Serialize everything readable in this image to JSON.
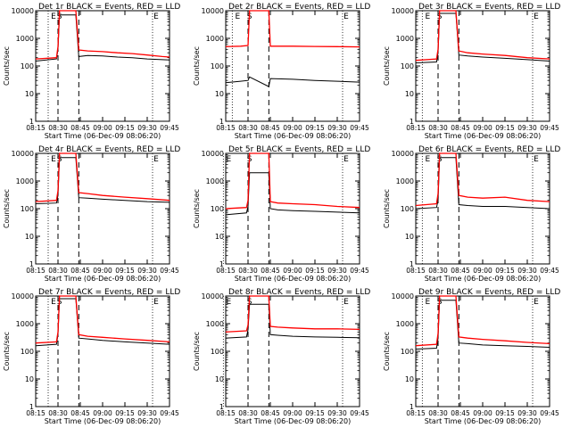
{
  "figure": {
    "xticks": [
      "08:15",
      "08:30",
      "08:45",
      "09:00",
      "09:15",
      "09:30",
      "09:45"
    ],
    "yticks": [
      "1",
      "10",
      "100",
      "1000",
      "10000"
    ],
    "ylabel": "Counts/sec",
    "markers": [
      "E",
      "S",
      "E"
    ],
    "xlabel_2r": "Start Time (06-Dec-09 08:06:20)",
    "xlabel_3r": "Start Time (06-Dec-09 08:06:20)",
    "xlabel_5r": "Start Time (06-Dec-09 08:06:20)",
    "xlabel_6r": "Start Time (06-Dec-09 08:06:20)",
    "xlabel_8r": "Start Time (06-Dec-09 08:06:20)",
    "xlabel_9r": "Start Time (06-Dec-09 08:06:20)",
    "xlabel_1r": "Start Time (06-Dec-09 08:06:20)",
    "xlabel_4r": "Start Time (06-Dec-09 08:06:20)",
    "xlabel_7r": "Start Time (06-Dec-09 08:06:20)",
    "colors": {
      "events": "#000000",
      "lld": "#ff0000"
    }
  },
  "chart_data": [
    {
      "type": "line",
      "title": "Det 1r BLACK = Events, RED = LLD",
      "xlabel": "Start Time (06-Dec-09 08:06:20)",
      "ylabel": "Counts/sec",
      "yscale": "log",
      "ylim": [
        1,
        10000
      ],
      "xlim": [
        "08:15",
        "09:45"
      ],
      "markers": [
        [
          "E",
          "08:27"
        ],
        [
          "S",
          "08:31"
        ],
        [
          "E",
          "09:36"
        ]
      ],
      "series": [
        {
          "name": "BLACK = Events",
          "x": [
            "08:15",
            "08:29",
            "08:30",
            "08:31",
            "08:42",
            "08:44",
            "08:50",
            "09:00",
            "09:10",
            "09:20",
            "09:30",
            "09:40",
            "09:45"
          ],
          "y": [
            150,
            180,
            400,
            7000,
            7000,
            220,
            240,
            230,
            210,
            200,
            180,
            170,
            165
          ]
        },
        {
          "name": "RED = LLD",
          "x": [
            "08:15",
            "08:29",
            "08:30",
            "08:31",
            "08:42",
            "08:44",
            "08:50",
            "09:00",
            "09:10",
            "09:20",
            "09:30",
            "09:40",
            "09:45"
          ],
          "y": [
            180,
            200,
            500,
            10000,
            10000,
            380,
            350,
            330,
            300,
            280,
            250,
            220,
            210
          ]
        }
      ]
    },
    {
      "type": "line",
      "title": "Det 2r BLACK = Events, RED = LLD",
      "xlabel": "Start Time (06-Dec-09 08:06:20)",
      "ylabel": "Counts/sec",
      "yscale": "log",
      "ylim": [
        1,
        10000
      ],
      "xlim": [
        "08:15",
        "09:45"
      ],
      "markers": [
        [
          "E",
          "08:23"
        ],
        [
          "S",
          "08:31"
        ],
        [
          "E",
          "09:36"
        ]
      ],
      "series": [
        {
          "name": "BLACK = Events",
          "x": [
            "08:15",
            "08:25",
            "08:30",
            "08:31",
            "08:44",
            "08:45",
            "09:00",
            "09:15",
            "09:30",
            "09:45"
          ],
          "y": [
            25,
            28,
            30,
            40,
            18,
            35,
            33,
            30,
            28,
            26
          ]
        },
        {
          "name": "RED = LLD",
          "x": [
            "08:15",
            "08:25",
            "08:30",
            "08:31",
            "08:44",
            "08:45",
            "09:00",
            "09:15",
            "09:30",
            "09:45"
          ],
          "y": [
            500,
            520,
            550,
            10000,
            10000,
            520,
            520,
            510,
            500,
            490
          ]
        }
      ]
    },
    {
      "type": "line",
      "title": "Det 3r BLACK = Events, RED = LLD",
      "xlabel": "Start Time (06-Dec-09 08:06:20)",
      "ylabel": "Counts/sec",
      "yscale": "log",
      "ylim": [
        1,
        10000
      ],
      "xlim": [
        "08:15",
        "09:45"
      ],
      "markers": [
        [
          "E",
          "08:23"
        ],
        [
          "S",
          "08:31"
        ],
        [
          "E",
          "09:36"
        ]
      ],
      "series": [
        {
          "name": "BLACK = Events",
          "x": [
            "08:15",
            "08:29",
            "08:30",
            "08:31",
            "08:42",
            "08:44",
            "08:50",
            "09:00",
            "09:15",
            "09:30",
            "09:45"
          ],
          "y": [
            130,
            140,
            300,
            8000,
            8000,
            250,
            230,
            210,
            190,
            170,
            150
          ]
        },
        {
          "name": "RED = LLD",
          "x": [
            "08:15",
            "08:29",
            "08:30",
            "08:31",
            "08:42",
            "08:44",
            "08:50",
            "09:00",
            "09:15",
            "09:30",
            "09:45"
          ],
          "y": [
            160,
            180,
            400,
            10000,
            10000,
            350,
            300,
            270,
            240,
            200,
            180
          ]
        }
      ]
    },
    {
      "type": "line",
      "title": "Det 4r BLACK = Events, RED = LLD",
      "xlabel": "Start Time (06-Dec-09 08:06:20)",
      "ylabel": "Counts/sec",
      "yscale": "log",
      "ylim": [
        1,
        10000
      ],
      "xlim": [
        "08:15",
        "09:45"
      ],
      "markers": [
        [
          "E",
          "08:27"
        ],
        [
          "S",
          "08:31"
        ],
        [
          "E",
          "09:36"
        ]
      ],
      "series": [
        {
          "name": "BLACK = Events",
          "x": [
            "08:15",
            "08:29",
            "08:30",
            "08:31",
            "08:42",
            "08:44",
            "08:50",
            "09:00",
            "09:15",
            "09:30",
            "09:45"
          ],
          "y": [
            150,
            160,
            300,
            7000,
            7000,
            250,
            240,
            220,
            200,
            180,
            170
          ]
        },
        {
          "name": "RED = LLD",
          "x": [
            "08:15",
            "08:29",
            "08:30",
            "08:31",
            "08:42",
            "08:44",
            "08:50",
            "09:00",
            "09:15",
            "09:30",
            "09:45"
          ],
          "y": [
            180,
            200,
            450,
            10000,
            10000,
            380,
            350,
            300,
            260,
            230,
            200
          ]
        }
      ]
    },
    {
      "type": "line",
      "title": "Det 5r BLACK = Events, RED = LLD",
      "xlabel": "Start Time (06-Dec-09 08:06:20)",
      "ylabel": "Counts/sec",
      "yscale": "log",
      "ylim": [
        1,
        10000
      ],
      "xlim": [
        "08:15",
        "09:45"
      ],
      "markers": [
        [
          "E",
          "08:17"
        ],
        [
          "S",
          "08:31"
        ],
        [
          "E",
          "09:36"
        ]
      ],
      "series": [
        {
          "name": "BLACK = Events",
          "x": [
            "08:15",
            "08:29",
            "08:30",
            "08:31",
            "08:44",
            "08:45",
            "08:50",
            "09:00",
            "09:15",
            "09:30",
            "09:45"
          ],
          "y": [
            60,
            70,
            120,
            2000,
            2000,
            100,
            90,
            85,
            80,
            75,
            70
          ]
        },
        {
          "name": "RED = LLD",
          "x": [
            "08:15",
            "08:29",
            "08:30",
            "08:31",
            "08:44",
            "08:45",
            "08:50",
            "09:00",
            "09:15",
            "09:30",
            "09:45"
          ],
          "y": [
            100,
            110,
            200,
            10000,
            10000,
            180,
            160,
            150,
            140,
            120,
            110
          ]
        }
      ]
    },
    {
      "type": "line",
      "title": "Det 6r BLACK = Events, RED = LLD",
      "xlabel": "Start Time (06-Dec-09 08:06:20)",
      "ylabel": "Counts/sec",
      "yscale": "log",
      "ylim": [
        1,
        10000
      ],
      "xlim": [
        "08:15",
        "09:45"
      ],
      "markers": [
        [
          "E",
          "08:23"
        ],
        [
          "S",
          "08:31"
        ],
        [
          "E",
          "09:36"
        ]
      ],
      "series": [
        {
          "name": "BLACK = Events",
          "x": [
            "08:15",
            "08:29",
            "08:30",
            "08:31",
            "08:42",
            "08:44",
            "08:50",
            "09:00",
            "09:15",
            "09:30",
            "09:45"
          ],
          "y": [
            100,
            110,
            200,
            7000,
            7000,
            140,
            130,
            120,
            120,
            110,
            100
          ]
        },
        {
          "name": "RED = LLD",
          "x": [
            "08:15",
            "08:29",
            "08:30",
            "08:31",
            "08:42",
            "08:44",
            "08:50",
            "09:00",
            "09:15",
            "09:30",
            "09:45"
          ],
          "y": [
            130,
            150,
            350,
            10000,
            10000,
            300,
            260,
            240,
            260,
            200,
            180
          ]
        }
      ]
    },
    {
      "type": "line",
      "title": "Det 7r BLACK = Events, RED = LLD",
      "xlabel": "Start Time (06-Dec-09 08:06:20)",
      "ylabel": "Counts/sec",
      "yscale": "log",
      "ylim": [
        1,
        10000
      ],
      "xlim": [
        "08:15",
        "09:45"
      ],
      "markers": [
        [
          "E",
          "08:27"
        ],
        [
          "S",
          "08:31"
        ],
        [
          "E",
          "09:36"
        ]
      ],
      "series": [
        {
          "name": "BLACK = Events",
          "x": [
            "08:15",
            "08:29",
            "08:30",
            "08:31",
            "08:42",
            "08:44",
            "08:50",
            "09:00",
            "09:15",
            "09:30",
            "09:45"
          ],
          "y": [
            160,
            180,
            400,
            8000,
            8000,
            300,
            280,
            250,
            220,
            200,
            180
          ]
        },
        {
          "name": "RED = LLD",
          "x": [
            "08:15",
            "08:29",
            "08:30",
            "08:31",
            "08:42",
            "08:44",
            "08:50",
            "09:00",
            "09:15",
            "09:30",
            "09:45"
          ],
          "y": [
            200,
            220,
            500,
            10000,
            10000,
            400,
            350,
            320,
            280,
            250,
            220
          ]
        }
      ]
    },
    {
      "type": "line",
      "title": "Det 8r BLACK = Events, RED = LLD",
      "xlabel": "Start Time (06-Dec-09 08:06:20)",
      "ylabel": "Counts/sec",
      "yscale": "log",
      "ylim": [
        1,
        10000
      ],
      "xlim": [
        "08:15",
        "09:45"
      ],
      "markers": [
        [
          "E",
          "08:17"
        ],
        [
          "S",
          "08:31"
        ],
        [
          "E",
          "09:36"
        ]
      ],
      "series": [
        {
          "name": "BLACK = Events",
          "x": [
            "08:15",
            "08:29",
            "08:30",
            "08:31",
            "08:44",
            "08:45",
            "08:50",
            "09:00",
            "09:15",
            "09:30",
            "09:45"
          ],
          "y": [
            300,
            330,
            600,
            5000,
            5000,
            400,
            380,
            350,
            330,
            320,
            310
          ]
        },
        {
          "name": "RED = LLD",
          "x": [
            "08:15",
            "08:29",
            "08:30",
            "08:31",
            "08:44",
            "08:45",
            "08:50",
            "09:00",
            "09:15",
            "09:30",
            "09:45"
          ],
          "y": [
            500,
            550,
            900,
            10000,
            10000,
            800,
            750,
            700,
            650,
            650,
            620
          ]
        }
      ]
    },
    {
      "type": "line",
      "title": "Det 9r BLACK = Events, RED = LLD",
      "xlabel": "Start Time (06-Dec-09 08:06:20)",
      "ylabel": "Counts/sec",
      "yscale": "log",
      "ylim": [
        1,
        10000
      ],
      "xlim": [
        "08:15",
        "09:45"
      ],
      "markers": [
        [
          "E",
          "08:23"
        ],
        [
          "S",
          "08:31"
        ],
        [
          "E",
          "09:36"
        ]
      ],
      "series": [
        {
          "name": "BLACK = Events",
          "x": [
            "08:15",
            "08:29",
            "08:30",
            "08:31",
            "08:42",
            "08:44",
            "08:50",
            "09:00",
            "09:15",
            "09:30",
            "09:45"
          ],
          "y": [
            120,
            130,
            300,
            7000,
            7000,
            200,
            190,
            170,
            160,
            150,
            140
          ]
        },
        {
          "name": "RED = LLD",
          "x": [
            "08:15",
            "08:29",
            "08:30",
            "08:31",
            "08:42",
            "08:44",
            "08:50",
            "09:00",
            "09:15",
            "09:30",
            "09:45"
          ],
          "y": [
            160,
            180,
            450,
            10000,
            10000,
            330,
            300,
            270,
            240,
            210,
            190
          ]
        }
      ]
    }
  ]
}
